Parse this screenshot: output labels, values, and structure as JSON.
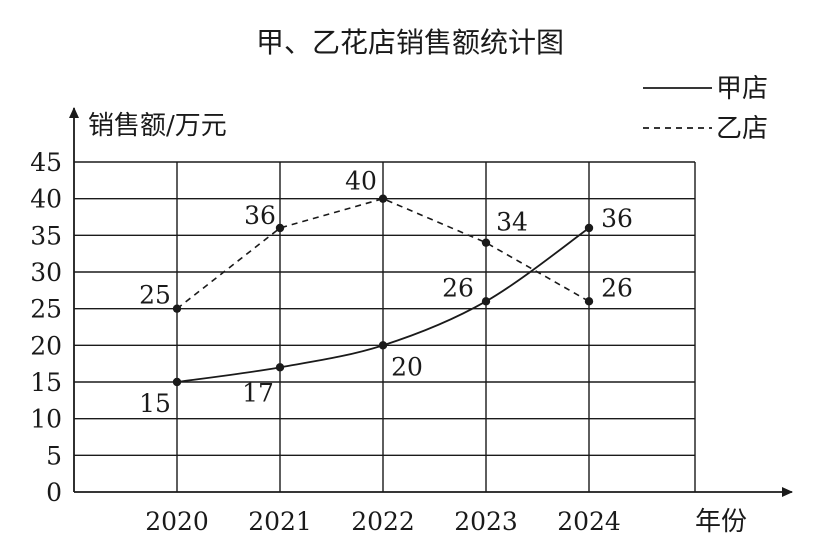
{
  "chart_data": {
    "type": "line",
    "title": "甲、乙花店销售额统计图",
    "ylabel": "销售额/万元",
    "xlabel": "年份",
    "categories": [
      "2020",
      "2021",
      "2022",
      "2023",
      "2024"
    ],
    "yticks": [
      "0",
      "5",
      "10",
      "15",
      "20",
      "25",
      "30",
      "35",
      "40",
      "45"
    ],
    "ylim": [
      0,
      45
    ],
    "grid": true,
    "legend_position": "top-right",
    "series": [
      {
        "name": "甲店",
        "style": "solid",
        "values": [
          15,
          17,
          20,
          26,
          36
        ],
        "labels": [
          "15",
          "17",
          "20",
          "26",
          "36"
        ]
      },
      {
        "name": "乙店",
        "style": "dashed",
        "values": [
          25,
          36,
          40,
          34,
          26
        ],
        "labels": [
          "25",
          "36",
          "40",
          "34",
          "26"
        ]
      }
    ],
    "colors": {
      "ink": "#1a1a1a",
      "background": "#ffffff"
    }
  }
}
